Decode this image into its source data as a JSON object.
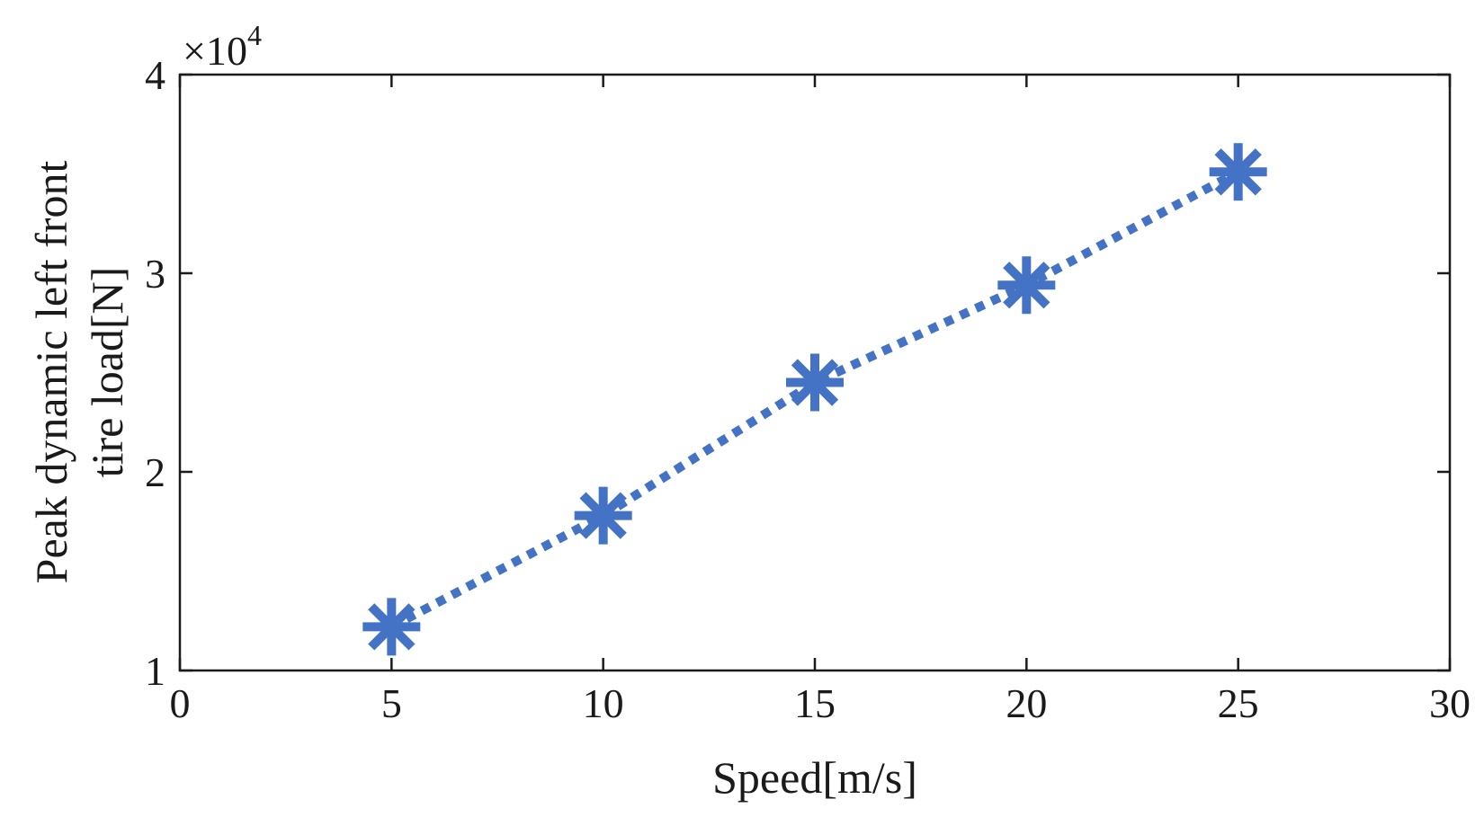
{
  "chart_data": {
    "type": "line",
    "title": "",
    "xlabel": "Speed[m/s]",
    "ylabel_lines": [
      "Peak dynamic left front",
      "tire load[N]"
    ],
    "y_exponent_base": "×10",
    "y_exponent_power": "4",
    "xlim": [
      0,
      30
    ],
    "ylim": [
      1,
      4
    ],
    "xticks": [
      0,
      5,
      10,
      15,
      20,
      25,
      30
    ],
    "xtick_labels": [
      "0",
      "5",
      "10",
      "15",
      "20",
      "25",
      "30"
    ],
    "yticks": [
      1,
      2,
      3,
      4
    ],
    "ytick_labels": [
      "1",
      "2",
      "3",
      "4"
    ],
    "grid": false,
    "series": [
      {
        "name": "Peak dynamic left front tire load",
        "color": "#4472C4",
        "line_style": "dotted",
        "marker": "asterisk",
        "x": [
          5,
          10,
          15,
          20,
          25
        ],
        "y": [
          1.22,
          1.78,
          2.45,
          2.94,
          3.51
        ]
      }
    ]
  }
}
